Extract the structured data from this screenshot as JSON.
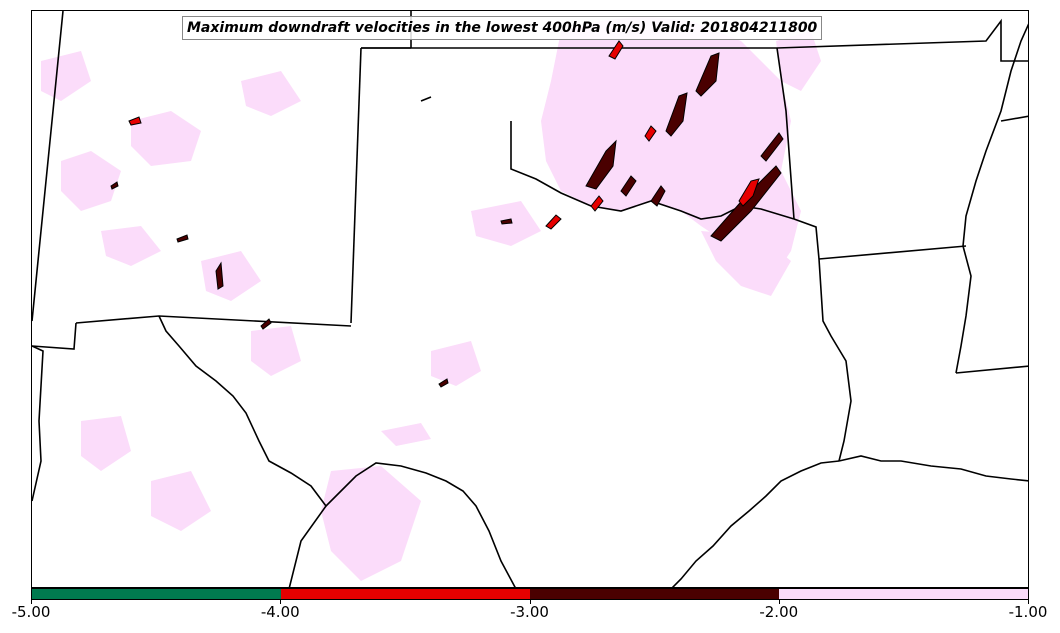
{
  "title": "Maximum downdraft velocities in the lowest 400hPa (m/s) Valid: 201804211800",
  "colorbar": {
    "segments": [
      {
        "color": "#007a4f",
        "from": -5.0,
        "to": -4.0
      },
      {
        "color": "#e60000",
        "from": -4.0,
        "to": -3.0
      },
      {
        "color": "#4a0000",
        "from": -3.0,
        "to": -2.0
      },
      {
        "color": "#fbdcfa",
        "from": -2.0,
        "to": -1.0
      }
    ],
    "tick_labels": [
      "-5.00",
      "-4.00",
      "-3.00",
      "-2.00",
      "-1.00"
    ]
  },
  "colors": {
    "light_pink": "#fbdcfa",
    "red": "#e60000",
    "dark_red": "#4a0000",
    "green": "#007a4f",
    "borders": "#000000"
  }
}
